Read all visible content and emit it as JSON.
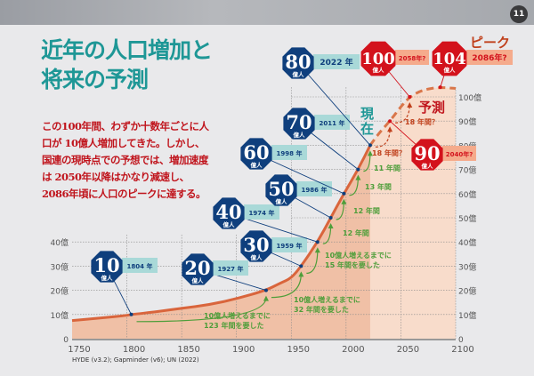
{
  "page_number": "11",
  "title_lines": [
    "近年の人口増加と",
    "将来の予測"
  ],
  "description": "この100年間、わずか十数年ごとに人口が 10億人増加してきた。しかし、国連の現時点での予想では、増加速度は 2050年以降はかなり減速し、2086年頃に人口のピークに達する。",
  "source": "HYDE (v3.2); Gapminder (v6); UN (2022)",
  "colors": {
    "title": "#1e9796",
    "text_red": "#c0141c",
    "badge_blue": "#0f3f7d",
    "badge_red": "#d3121c",
    "line": "#d9653c",
    "arrow_green": "#4e9e3a",
    "label_teal": "#a9d9d8",
    "label_salmon": "#f5ab8c"
  },
  "chart_data": {
    "type": "area",
    "xlim": [
      1750,
      2100
    ],
    "ylim": [
      0,
      100
    ],
    "x_ticks": [
      "1750",
      "1800",
      "1850",
      "1900",
      "1950",
      "2000",
      "2050",
      "2100"
    ],
    "y_ticks_right": [
      "0",
      "10億",
      "20億",
      "30億",
      "40億",
      "50億",
      "60億",
      "70億",
      "80億",
      "90億",
      "100億"
    ],
    "y_ticks_left": [
      "0",
      "10億",
      "20億",
      "30億",
      "40億"
    ],
    "grid": true,
    "series": [
      {
        "name": "",
        "style": "solid",
        "x": [
          1750,
          1775,
          1800,
          1804,
          1825,
          1850,
          1875,
          1900,
          1927,
          1940,
          1950,
          1959,
          1974,
          1986,
          1998,
          2011,
          2022
        ],
        "values": [
          7.5,
          8.5,
          9.6,
          10,
          11,
          12.6,
          14,
          16.5,
          20,
          23,
          25,
          30,
          40,
          50,
          60,
          70,
          80
        ]
      },
      {
        "name": "予測",
        "style": "dashed",
        "x": [
          2022,
          2030,
          2040,
          2050,
          2058,
          2070,
          2086,
          2100
        ],
        "values": [
          80,
          85,
          90,
          96,
          100,
          103,
          104,
          103.5
        ]
      }
    ],
    "milestones": [
      {
        "value": "10",
        "unit": "億人",
        "year": "1804 年",
        "x": 1804,
        "y": 10,
        "type": "past"
      },
      {
        "value": "20",
        "unit": "億人",
        "year": "1927 年",
        "x": 1927,
        "y": 20,
        "type": "past"
      },
      {
        "value": "30",
        "unit": "億人",
        "year": "1959 年",
        "x": 1959,
        "y": 30,
        "type": "past"
      },
      {
        "value": "40",
        "unit": "億人",
        "year": "1974 年",
        "x": 1974,
        "y": 40,
        "type": "past"
      },
      {
        "value": "50",
        "unit": "億人",
        "year": "1986 年",
        "x": 1986,
        "y": 50,
        "type": "past"
      },
      {
        "value": "60",
        "unit": "億人",
        "year": "1998 年",
        "x": 1998,
        "y": 60,
        "type": "past"
      },
      {
        "value": "70",
        "unit": "億人",
        "year": "2011 年",
        "x": 2011,
        "y": 70,
        "type": "past"
      },
      {
        "value": "80",
        "unit": "億人",
        "year": "2022 年",
        "x": 2022,
        "y": 80,
        "type": "past"
      },
      {
        "value": "90",
        "unit": "億人",
        "year": "2040年?",
        "x": 2040,
        "y": 90,
        "type": "forecast"
      },
      {
        "value": "100",
        "unit": "億人",
        "year": "2058年?",
        "x": 2058,
        "y": 100,
        "type": "forecast"
      },
      {
        "value": "104",
        "unit": "億人",
        "year": "2086年?",
        "x": 2086,
        "y": 104,
        "type": "forecast"
      }
    ],
    "intervals": [
      {
        "lines": [
          "10億人増えるまでに",
          "123 年間を要した"
        ],
        "from": 1804,
        "to": 1927
      },
      {
        "lines": [
          "10億人増えるまでに",
          "32 年間を要した"
        ],
        "from": 1927,
        "to": 1959
      },
      {
        "lines": [
          "10億人増えるまでに",
          "15 年間を要した"
        ],
        "from": 1959,
        "to": 1974
      },
      {
        "lines": [
          "12 年間"
        ],
        "from": 1974,
        "to": 1986
      },
      {
        "lines": [
          "12 年間"
        ],
        "from": 1986,
        "to": 1998
      },
      {
        "lines": [
          "13 年間"
        ],
        "from": 1998,
        "to": 2011
      },
      {
        "lines": [
          "11 年間"
        ],
        "from": 2011,
        "to": 2022
      },
      {
        "lines": [
          "18 年間？"
        ],
        "from": 2022,
        "to": 2040
      },
      {
        "lines": [
          "18 年間？"
        ],
        "from": 2040,
        "to": 2058
      }
    ],
    "annotations": {
      "now": "現在",
      "forecast": "予測",
      "peak": "ピーク"
    }
  }
}
